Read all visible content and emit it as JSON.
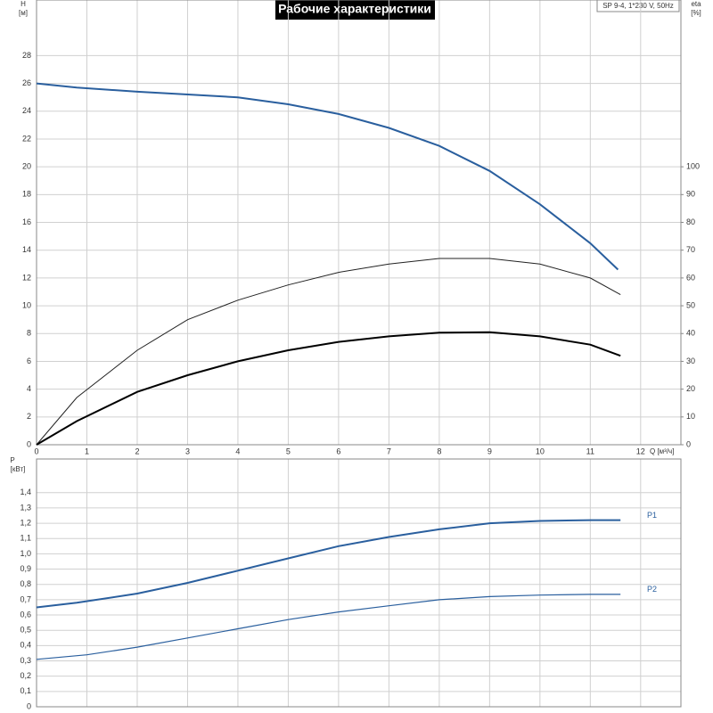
{
  "chart_data": [
    {
      "type": "line",
      "title": "Рабочие характеристики",
      "subtitle": "SP 9-4, 1*230 V, 50Hz",
      "ylabel": "H",
      "yunit": "[м]",
      "y2label": "eta",
      "y2unit": "[%]",
      "xlabel": "Q [м³/ч]",
      "xlim": [
        0,
        12.8
      ],
      "xticks": [
        0,
        1,
        2,
        3,
        4,
        5,
        6,
        7,
        8,
        9,
        10,
        11,
        12
      ],
      "ylim": [
        0,
        32
      ],
      "yticks": [
        0,
        2,
        4,
        6,
        8,
        10,
        12,
        14,
        16,
        18,
        20,
        22,
        24,
        26,
        28
      ],
      "y2lim": [
        0,
        160
      ],
      "y2ticks": [
        0,
        10,
        20,
        30,
        40,
        50,
        60,
        70,
        80,
        90,
        100
      ],
      "grid": true,
      "series": [
        {
          "color": "#2a5f9e",
          "x": [
            0,
            0.8,
            2,
            3,
            4,
            5,
            6,
            7,
            8,
            9,
            10,
            11,
            11.55
          ],
          "values": [
            26,
            25.7,
            25.4,
            25.2,
            25,
            24.5,
            23.8,
            22.8,
            21.5,
            19.7,
            17.3,
            14.5,
            12.6
          ]
        },
        {
          "color": "#222222",
          "axis": "y2",
          "x": [
            0,
            0.8,
            2,
            3,
            4,
            5,
            6,
            7,
            8,
            9,
            10,
            11,
            11.6
          ],
          "values": [
            0,
            17,
            34,
            45,
            52,
            57.5,
            62,
            65,
            67,
            67,
            65,
            60,
            54
          ]
        },
        {
          "color": "#000000",
          "axis": "y2",
          "x": [
            0,
            0.8,
            2,
            3,
            4,
            5,
            6,
            7,
            8,
            9,
            10,
            11,
            11.6
          ],
          "values": [
            0,
            8.5,
            19,
            25,
            30,
            34,
            37,
            39,
            40.3,
            40.5,
            39,
            36,
            32
          ]
        }
      ]
    },
    {
      "type": "line",
      "ylabel": "P",
      "yunit": "[кВт]",
      "xlim": [
        0,
        12.8
      ],
      "ylim": [
        0,
        1.62
      ],
      "yticks": [
        0,
        {
          "value": 0.1,
          "label": "0,1"
        },
        {
          "value": 0.2,
          "label": "0,2"
        },
        {
          "value": 0.3,
          "label": "0,3"
        },
        {
          "value": 0.4,
          "label": "0,4"
        },
        {
          "value": 0.5,
          "label": "0,5"
        },
        {
          "value": 0.6,
          "label": "0,6"
        },
        {
          "value": 0.7,
          "label": "0,7"
        },
        {
          "value": 0.8,
          "label": "0,8"
        },
        {
          "value": 0.9,
          "label": "0,9"
        },
        {
          "value": 1.0,
          "label": "1,0"
        },
        {
          "value": 1.1,
          "label": "1,1"
        },
        {
          "value": 1.2,
          "label": "1,2"
        },
        {
          "value": 1.3,
          "label": "1,3"
        },
        {
          "value": 1.4,
          "label": "1,4"
        }
      ],
      "grid": true,
      "series": [
        {
          "name": "P1",
          "color": "#2a5f9e",
          "x": [
            0,
            0.8,
            2,
            3,
            4,
            5,
            6,
            7,
            8,
            9,
            10,
            11,
            11.6
          ],
          "values": [
            0.65,
            0.68,
            0.74,
            0.81,
            0.89,
            0.97,
            1.05,
            1.11,
            1.16,
            1.2,
            1.215,
            1.22,
            1.22
          ]
        },
        {
          "name": "P2",
          "color": "#2a5f9e",
          "x": [
            0,
            1,
            2,
            3,
            4,
            5,
            6,
            7,
            8,
            9,
            10,
            11,
            11.6
          ],
          "values": [
            0.31,
            0.34,
            0.39,
            0.45,
            0.51,
            0.57,
            0.62,
            0.66,
            0.7,
            0.72,
            0.73,
            0.735,
            0.735
          ]
        }
      ]
    }
  ]
}
